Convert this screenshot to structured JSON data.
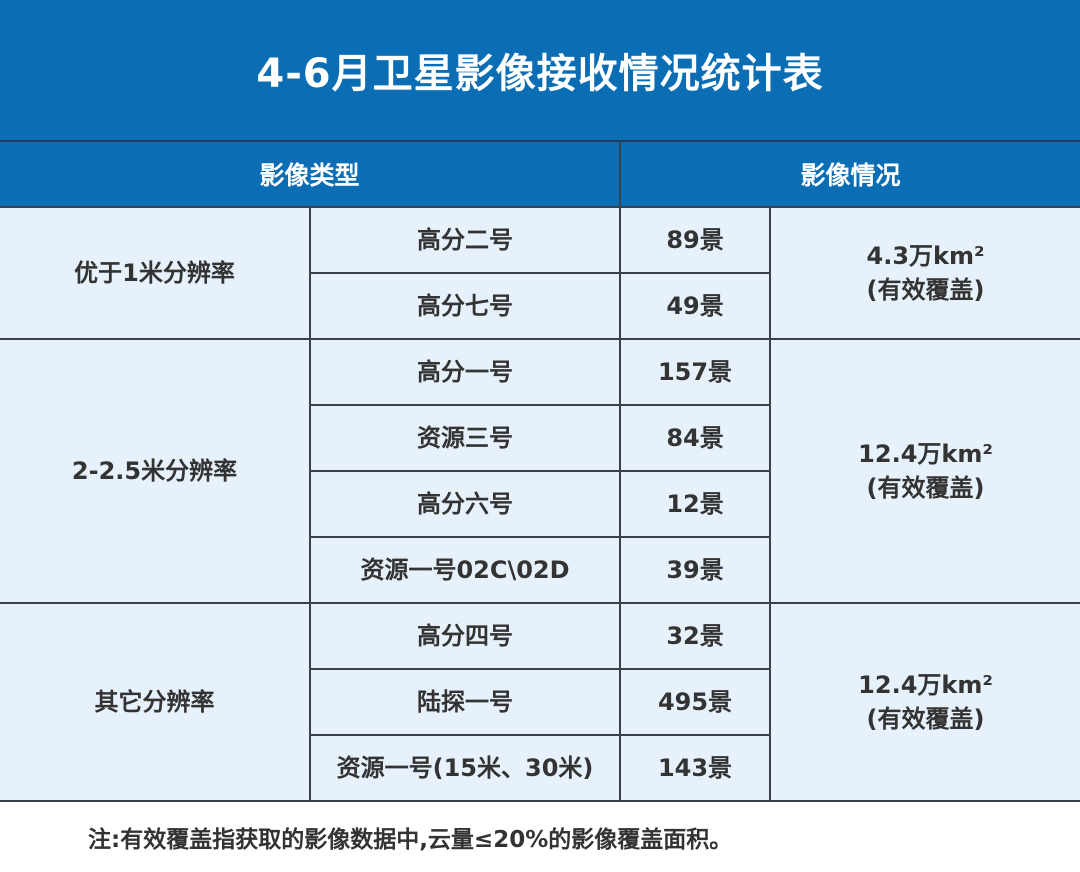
{
  "title": "4-6月卫星影像接收情况统计表",
  "headers": {
    "type": "影像类型",
    "status": "影像情况"
  },
  "groups": [
    {
      "category": "优于1米分辨率",
      "coverage": "4.3万km²",
      "coverage_note": "(有效覆盖)",
      "rows": [
        {
          "satellite": "高分二号",
          "count": "89景"
        },
        {
          "satellite": "高分七号",
          "count": "49景"
        }
      ]
    },
    {
      "category": "2-2.5米分辨率",
      "coverage": "12.4万km²",
      "coverage_note": "(有效覆盖)",
      "rows": [
        {
          "satellite": "高分一号",
          "count": "157景"
        },
        {
          "satellite": "资源三号",
          "count": "84景"
        },
        {
          "satellite": "高分六号",
          "count": "12景"
        },
        {
          "satellite": "资源一号02C\\02D",
          "count": "39景"
        }
      ]
    },
    {
      "category": "其它分辨率",
      "coverage": "12.4万km²",
      "coverage_note": "(有效覆盖)",
      "rows": [
        {
          "satellite": "高分四号",
          "count": "32景"
        },
        {
          "satellite": "陆探一号",
          "count": "495景"
        },
        {
          "satellite": "资源一号(15米、30米)",
          "count": "143景"
        }
      ]
    }
  ],
  "footnote": "注:有效覆盖指获取的影像数据中,云量≤20%的影像覆盖面积。",
  "colors": {
    "header_bg": "#0b6db3",
    "cell_bg": "#e6f1fb",
    "border": "#3b4148"
  }
}
